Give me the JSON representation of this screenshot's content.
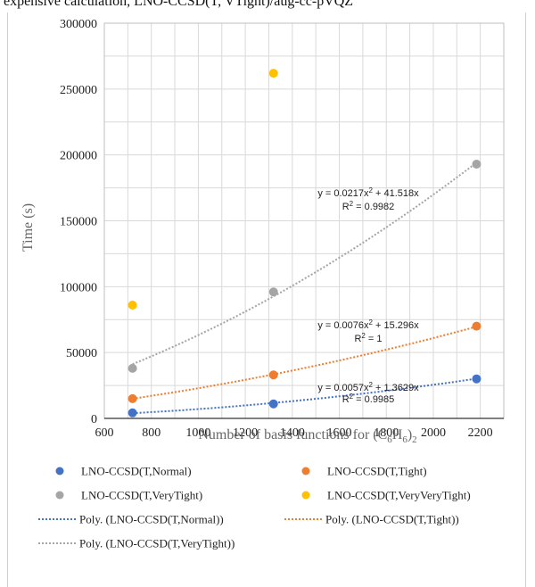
{
  "top_text": "expensive calculation, LNO-CCSD(T, VTight)/aug-cc-pVQZ",
  "chart_data": {
    "type": "scatter",
    "xlabel_prefix": "Number of basis functions for (C",
    "xlabel_sub1": "6",
    "xlabel_mid": "H",
    "xlabel_sub2": "6",
    "xlabel_suffix": ")",
    "xlabel_sub3": "2",
    "ylabel": "Time (s)",
    "xlim": [
      600,
      2300
    ],
    "ylim": [
      0,
      300000
    ],
    "xticks": [
      600,
      800,
      1000,
      1200,
      1400,
      1600,
      1800,
      2000,
      2200
    ],
    "yticks": [
      0,
      50000,
      100000,
      150000,
      200000,
      250000,
      300000
    ],
    "grid": true,
    "legend_position": "bottom",
    "series": [
      {
        "name": "LNO-CCSD(T,Normal)",
        "color": "#4472C4",
        "x": [
          720,
          1320,
          2184
        ],
        "y": [
          4200,
          11000,
          30000
        ],
        "fit_name": "Poly. (LNO-CCSD(T,Normal))",
        "fit_coeffs": [
          0.0057,
          1.3629
        ],
        "fit_eq_lead": "y = 0.0057x",
        "fit_eq_sup": "2",
        "fit_eq_tail": " + 1.3629x",
        "fit_r2_lead": "R",
        "fit_r2_sup": "2",
        "fit_r2_tail": " = 0.9985"
      },
      {
        "name": "LNO-CCSD(T,Tight)",
        "color": "#ED7D31",
        "x": [
          720,
          1320,
          2184
        ],
        "y": [
          15000,
          33000,
          70000
        ],
        "fit_name": "Poly. (LNO-CCSD(T,Tight))",
        "fit_coeffs": [
          0.0076,
          15.296
        ],
        "fit_eq_lead": "y = 0.0076x",
        "fit_eq_sup": "2",
        "fit_eq_tail": " + 15.296x",
        "fit_r2_lead": "R",
        "fit_r2_sup": "2",
        "fit_r2_tail": " = 1"
      },
      {
        "name": "LNO-CCSD(T,VeryTight)",
        "color": "#A5A5A5",
        "x": [
          720,
          1320,
          2184
        ],
        "y": [
          38000,
          96000,
          193000
        ],
        "fit_name": "Poly. (LNO-CCSD(T,VeryTight))",
        "fit_coeffs": [
          0.0217,
          41.518
        ],
        "fit_eq_lead": "y = 0.0217x",
        "fit_eq_sup": "2",
        "fit_eq_tail": " + 41.518x",
        "fit_r2_lead": "R",
        "fit_r2_sup": "2",
        "fit_r2_tail": " = 0.9982"
      },
      {
        "name": "LNO-CCSD(T,VeryVeryTight)",
        "color": "#FFC000",
        "x": [
          720,
          1320
        ],
        "y": [
          86000,
          262000
        ]
      }
    ]
  }
}
